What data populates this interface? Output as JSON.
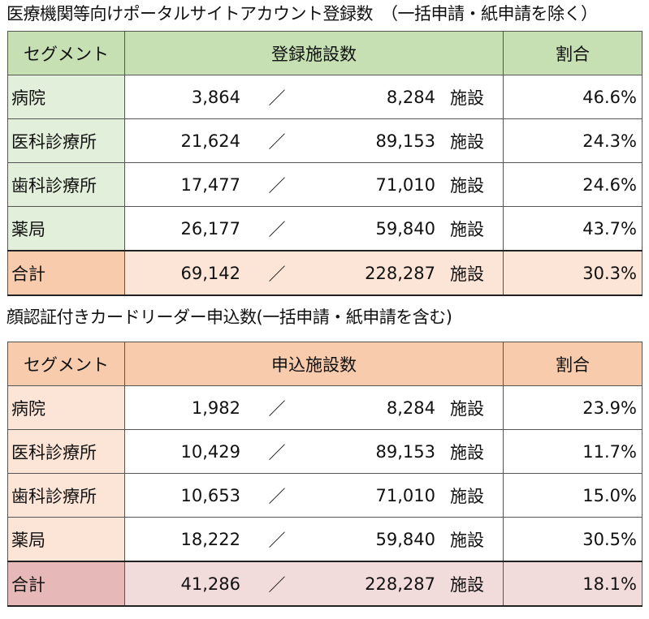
{
  "table1": {
    "title": "医療機関等向けポータルサイトアカウント登録数　（一括申請・紙申請を除く）",
    "headers": {
      "segment": "セグメント",
      "count": "登録施設数",
      "ratio": "割合"
    },
    "slash": "／",
    "unit": "施設",
    "colors": {
      "header": "#c6e0b4",
      "seg_bg": "#e2efda",
      "total_seg": "#f8cbad",
      "total_row": "#fce4d6"
    },
    "rows": [
      {
        "segment": "病院",
        "registered": "3,864",
        "total": "8,284",
        "ratio": "46.6%"
      },
      {
        "segment": "医科診療所",
        "registered": "21,624",
        "total": "89,153",
        "ratio": "24.3%"
      },
      {
        "segment": "歯科診療所",
        "registered": "17,477",
        "total": "71,010",
        "ratio": "24.6%"
      },
      {
        "segment": "薬局",
        "registered": "26,177",
        "total": "59,840",
        "ratio": "43.7%"
      }
    ],
    "total": {
      "segment": "合計",
      "registered": "69,142",
      "total": "228,287",
      "ratio": "30.3%"
    }
  },
  "table2": {
    "title": "顔認証付きカードリーダー申込数(一括申請・紙申請を含む)",
    "headers": {
      "segment": "セグメント",
      "count": "申込施設数",
      "ratio": "割合"
    },
    "slash": "／",
    "unit": "施設",
    "colors": {
      "header": "#f8cbad",
      "seg_bg": "#fce4d6",
      "total_seg": "#e6b8b7",
      "total_row": "#f2dcdb"
    },
    "rows": [
      {
        "segment": "病院",
        "registered": "1,982",
        "total": "8,284",
        "ratio": "23.9%"
      },
      {
        "segment": "医科診療所",
        "registered": "10,429",
        "total": "89,153",
        "ratio": "11.7%"
      },
      {
        "segment": "歯科診療所",
        "registered": "10,653",
        "total": "71,010",
        "ratio": "15.0%"
      },
      {
        "segment": "薬局",
        "registered": "18,222",
        "total": "59,840",
        "ratio": "30.5%"
      }
    ],
    "total": {
      "segment": "合計",
      "registered": "41,286",
      "total": "228,287",
      "ratio": "18.1%"
    }
  }
}
